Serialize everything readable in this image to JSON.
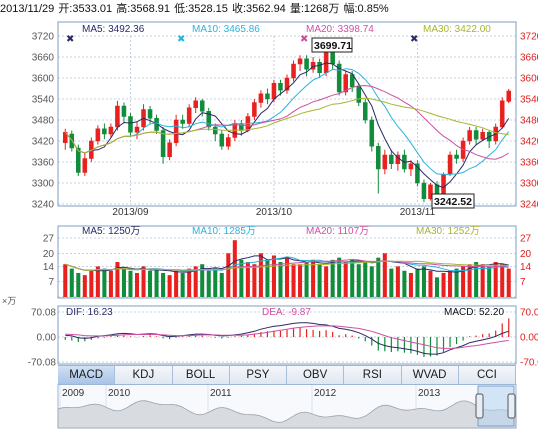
{
  "header": {
    "date": "2013/11/29",
    "open": "开:3533.01",
    "high": "高:3568.91",
    "low": "低:3528.15",
    "close": "收:3562.94",
    "volume": "量:1268万",
    "change": "幅:0.85%"
  },
  "colors": {
    "up": "#e8211f",
    "down": "#118b3c",
    "ma5": "#2a2a66",
    "ma10": "#2ab3d9",
    "ma20": "#d04fa2",
    "ma30": "#a7b52e",
    "axis_left": "#555555",
    "axis_right": "#e02020",
    "grid": "#8aa5c4",
    "tab_active": "#a8c4e6"
  },
  "price_panel": {
    "ma_labels": {
      "ma5": "MA5: 3492.36",
      "ma10": "MA10: 3465.86",
      "ma20": "MA20: 3398.74",
      "ma30": "MA30: 3422.00"
    },
    "high_marker": "3699.71",
    "low_marker": "3242.52"
  },
  "volume_panel": {
    "ma_labels": {
      "ma5": "MA5: 1250万",
      "ma10": "MA10: 1285万",
      "ma20": "MA20: 1107万",
      "ma30": "MA30: 1252万"
    },
    "unit": "×万"
  },
  "macd_panel": {
    "dif": "DIF: 16.23",
    "dea": "DEA: -9.87",
    "macd": "MACD: 52.20"
  },
  "tabs": [
    "MACD",
    "KDJ",
    "BOLL",
    "PSY",
    "OBV",
    "RSI",
    "WVAD",
    "CCI"
  ],
  "active_tab": "MACD",
  "timeline_years": [
    "2009",
    "2010",
    "2011",
    "2012",
    "2013"
  ],
  "chart_data": [
    {
      "type": "candlestick",
      "title": "",
      "x_labels": [
        "2013/09",
        "2013/10",
        "2013/11"
      ],
      "ylim": [
        3240,
        3720
      ],
      "y_ticks": [
        3240,
        3300,
        3360,
        3420,
        3480,
        3540,
        3600,
        3660,
        3720
      ],
      "grid": true,
      "candles": [
        [
          3415,
          3445,
          3395,
          3455
        ],
        [
          3440,
          3400,
          3390,
          3450
        ],
        [
          3400,
          3330,
          3320,
          3410
        ],
        [
          3330,
          3370,
          3320,
          3385
        ],
        [
          3370,
          3420,
          3360,
          3430
        ],
        [
          3420,
          3455,
          3410,
          3465
        ],
        [
          3455,
          3440,
          3425,
          3470
        ],
        [
          3440,
          3460,
          3430,
          3470
        ],
        [
          3460,
          3520,
          3450,
          3535
        ],
        [
          3520,
          3490,
          3470,
          3530
        ],
        [
          3490,
          3445,
          3435,
          3500
        ],
        [
          3445,
          3460,
          3425,
          3475
        ],
        [
          3460,
          3510,
          3450,
          3525
        ],
        [
          3510,
          3485,
          3470,
          3520
        ],
        [
          3485,
          3450,
          3440,
          3495
        ],
        [
          3450,
          3375,
          3355,
          3460
        ],
        [
          3375,
          3415,
          3365,
          3425
        ],
        [
          3415,
          3480,
          3405,
          3495
        ],
        [
          3480,
          3470,
          3455,
          3495
        ],
        [
          3470,
          3515,
          3460,
          3525
        ],
        [
          3515,
          3535,
          3500,
          3545
        ],
        [
          3535,
          3505,
          3490,
          3540
        ],
        [
          3505,
          3460,
          3450,
          3515
        ],
        [
          3460,
          3440,
          3420,
          3470
        ],
        [
          3440,
          3405,
          3395,
          3450
        ],
        [
          3405,
          3430,
          3395,
          3440
        ],
        [
          3430,
          3470,
          3420,
          3480
        ],
        [
          3470,
          3450,
          3435,
          3480
        ],
        [
          3450,
          3490,
          3445,
          3500
        ],
        [
          3490,
          3530,
          3480,
          3540
        ],
        [
          3530,
          3555,
          3515,
          3565
        ],
        [
          3555,
          3540,
          3525,
          3570
        ],
        [
          3540,
          3585,
          3530,
          3595
        ],
        [
          3585,
          3565,
          3550,
          3595
        ],
        [
          3565,
          3600,
          3555,
          3610
        ],
        [
          3600,
          3640,
          3590,
          3650
        ],
        [
          3640,
          3655,
          3620,
          3665
        ],
        [
          3655,
          3625,
          3605,
          3665
        ],
        [
          3625,
          3645,
          3615,
          3660
        ],
        [
          3645,
          3615,
          3600,
          3655
        ],
        [
          3615,
          3675,
          3605,
          3685
        ],
        [
          3675,
          3640,
          3625,
          3700
        ],
        [
          3640,
          3560,
          3550,
          3650
        ],
        [
          3560,
          3610,
          3550,
          3620
        ],
        [
          3610,
          3575,
          3560,
          3620
        ],
        [
          3575,
          3530,
          3520,
          3585
        ],
        [
          3530,
          3480,
          3470,
          3540
        ],
        [
          3480,
          3405,
          3390,
          3490
        ],
        [
          3405,
          3340,
          3270,
          3415
        ],
        [
          3340,
          3380,
          3325,
          3395
        ],
        [
          3380,
          3355,
          3340,
          3395
        ],
        [
          3355,
          3380,
          3335,
          3390
        ],
        [
          3380,
          3340,
          3330,
          3395
        ],
        [
          3340,
          3355,
          3320,
          3365
        ],
        [
          3355,
          3300,
          3290,
          3365
        ],
        [
          3300,
          3255,
          3245,
          3310
        ],
        [
          3255,
          3295,
          3250,
          3300
        ],
        [
          3295,
          3260,
          3243,
          3305
        ],
        [
          3260,
          3325,
          3255,
          3330
        ],
        [
          3325,
          3380,
          3320,
          3390
        ],
        [
          3380,
          3370,
          3355,
          3395
        ],
        [
          3370,
          3420,
          3360,
          3430
        ],
        [
          3420,
          3450,
          3410,
          3460
        ],
        [
          3450,
          3425,
          3410,
          3460
        ],
        [
          3425,
          3445,
          3420,
          3455
        ],
        [
          3445,
          3420,
          3400,
          3450
        ],
        [
          3420,
          3460,
          3410,
          3470
        ],
        [
          3460,
          3535,
          3455,
          3545
        ],
        [
          3533.01,
          3562.94,
          3528.15,
          3568.91
        ]
      ],
      "ma_values": {
        "ma5": 3492.36,
        "ma10": 3465.86,
        "ma20": 3398.74,
        "ma30": 3422.0
      }
    },
    {
      "type": "bar",
      "title": "",
      "ylim": [
        0,
        27
      ],
      "y_ticks": [
        0,
        7,
        14,
        20,
        27
      ],
      "values": [
        15,
        13,
        11,
        10,
        12,
        14,
        13,
        12,
        16,
        13,
        12,
        11,
        14,
        12,
        13,
        11,
        10,
        12,
        11,
        13,
        14,
        15,
        12,
        13,
        11,
        20,
        26,
        17,
        16,
        15,
        20,
        17,
        19,
        16,
        18,
        15,
        15,
        16,
        17,
        15,
        14,
        17,
        18,
        16,
        17,
        15,
        16,
        14,
        18,
        20,
        13,
        14,
        12,
        11,
        13,
        14,
        12,
        9,
        11,
        12,
        13,
        14,
        15,
        16,
        15,
        14,
        16,
        15,
        13
      ]
    },
    {
      "type": "line",
      "title": "",
      "ylim": [
        -70.08,
        70.08
      ],
      "y_ticks": [
        -70.08,
        0.0,
        70.08
      ],
      "macd": [
        -8,
        -10,
        -14,
        -12,
        -8,
        -4,
        -2,
        2,
        6,
        4,
        2,
        -1,
        3,
        5,
        2,
        -4,
        -6,
        -2,
        2,
        4,
        6,
        4,
        1,
        -2,
        -4,
        -2,
        2,
        3,
        6,
        10,
        14,
        16,
        18,
        17,
        20,
        24,
        26,
        22,
        20,
        17,
        19,
        14,
        5,
        8,
        4,
        -4,
        -12,
        -24,
        -38,
        -40,
        -42,
        -40,
        -44,
        -46,
        -50,
        -56,
        -55,
        -52,
        -42,
        -28,
        -20,
        -10,
        2,
        4,
        8,
        10,
        18,
        38,
        52.2
      ],
      "dif": [
        5,
        3,
        -2,
        -4,
        -2,
        2,
        4,
        6,
        9,
        10,
        9,
        7,
        8,
        9,
        8,
        4,
        1,
        2,
        4,
        6,
        8,
        8,
        7,
        5,
        3,
        4,
        6,
        8,
        12,
        16,
        22,
        26,
        30,
        32,
        35,
        38,
        40,
        40,
        38,
        35,
        34,
        30,
        24,
        22,
        18,
        12,
        4,
        -6,
        -18,
        -24,
        -28,
        -30,
        -33,
        -36,
        -40,
        -46,
        -48,
        -48,
        -44,
        -36,
        -30,
        -24,
        -16,
        -12,
        -8,
        -4,
        2,
        10,
        16.23
      ],
      "dea": [
        8,
        7,
        6,
        4,
        3,
        3,
        3,
        4,
        5,
        6,
        7,
        7,
        7,
        7,
        7,
        6,
        5,
        4,
        4,
        4,
        5,
        6,
        6,
        6,
        5,
        5,
        5,
        5,
        6,
        8,
        10,
        13,
        16,
        19,
        22,
        25,
        27,
        29,
        30,
        31,
        31,
        31,
        30,
        28,
        26,
        24,
        20,
        16,
        10,
        4,
        -2,
        -6,
        -10,
        -14,
        -18,
        -22,
        -26,
        -30,
        -32,
        -32,
        -31,
        -29,
        -26,
        -24,
        -21,
        -18,
        -15,
        -12,
        -9.87
      ]
    }
  ]
}
